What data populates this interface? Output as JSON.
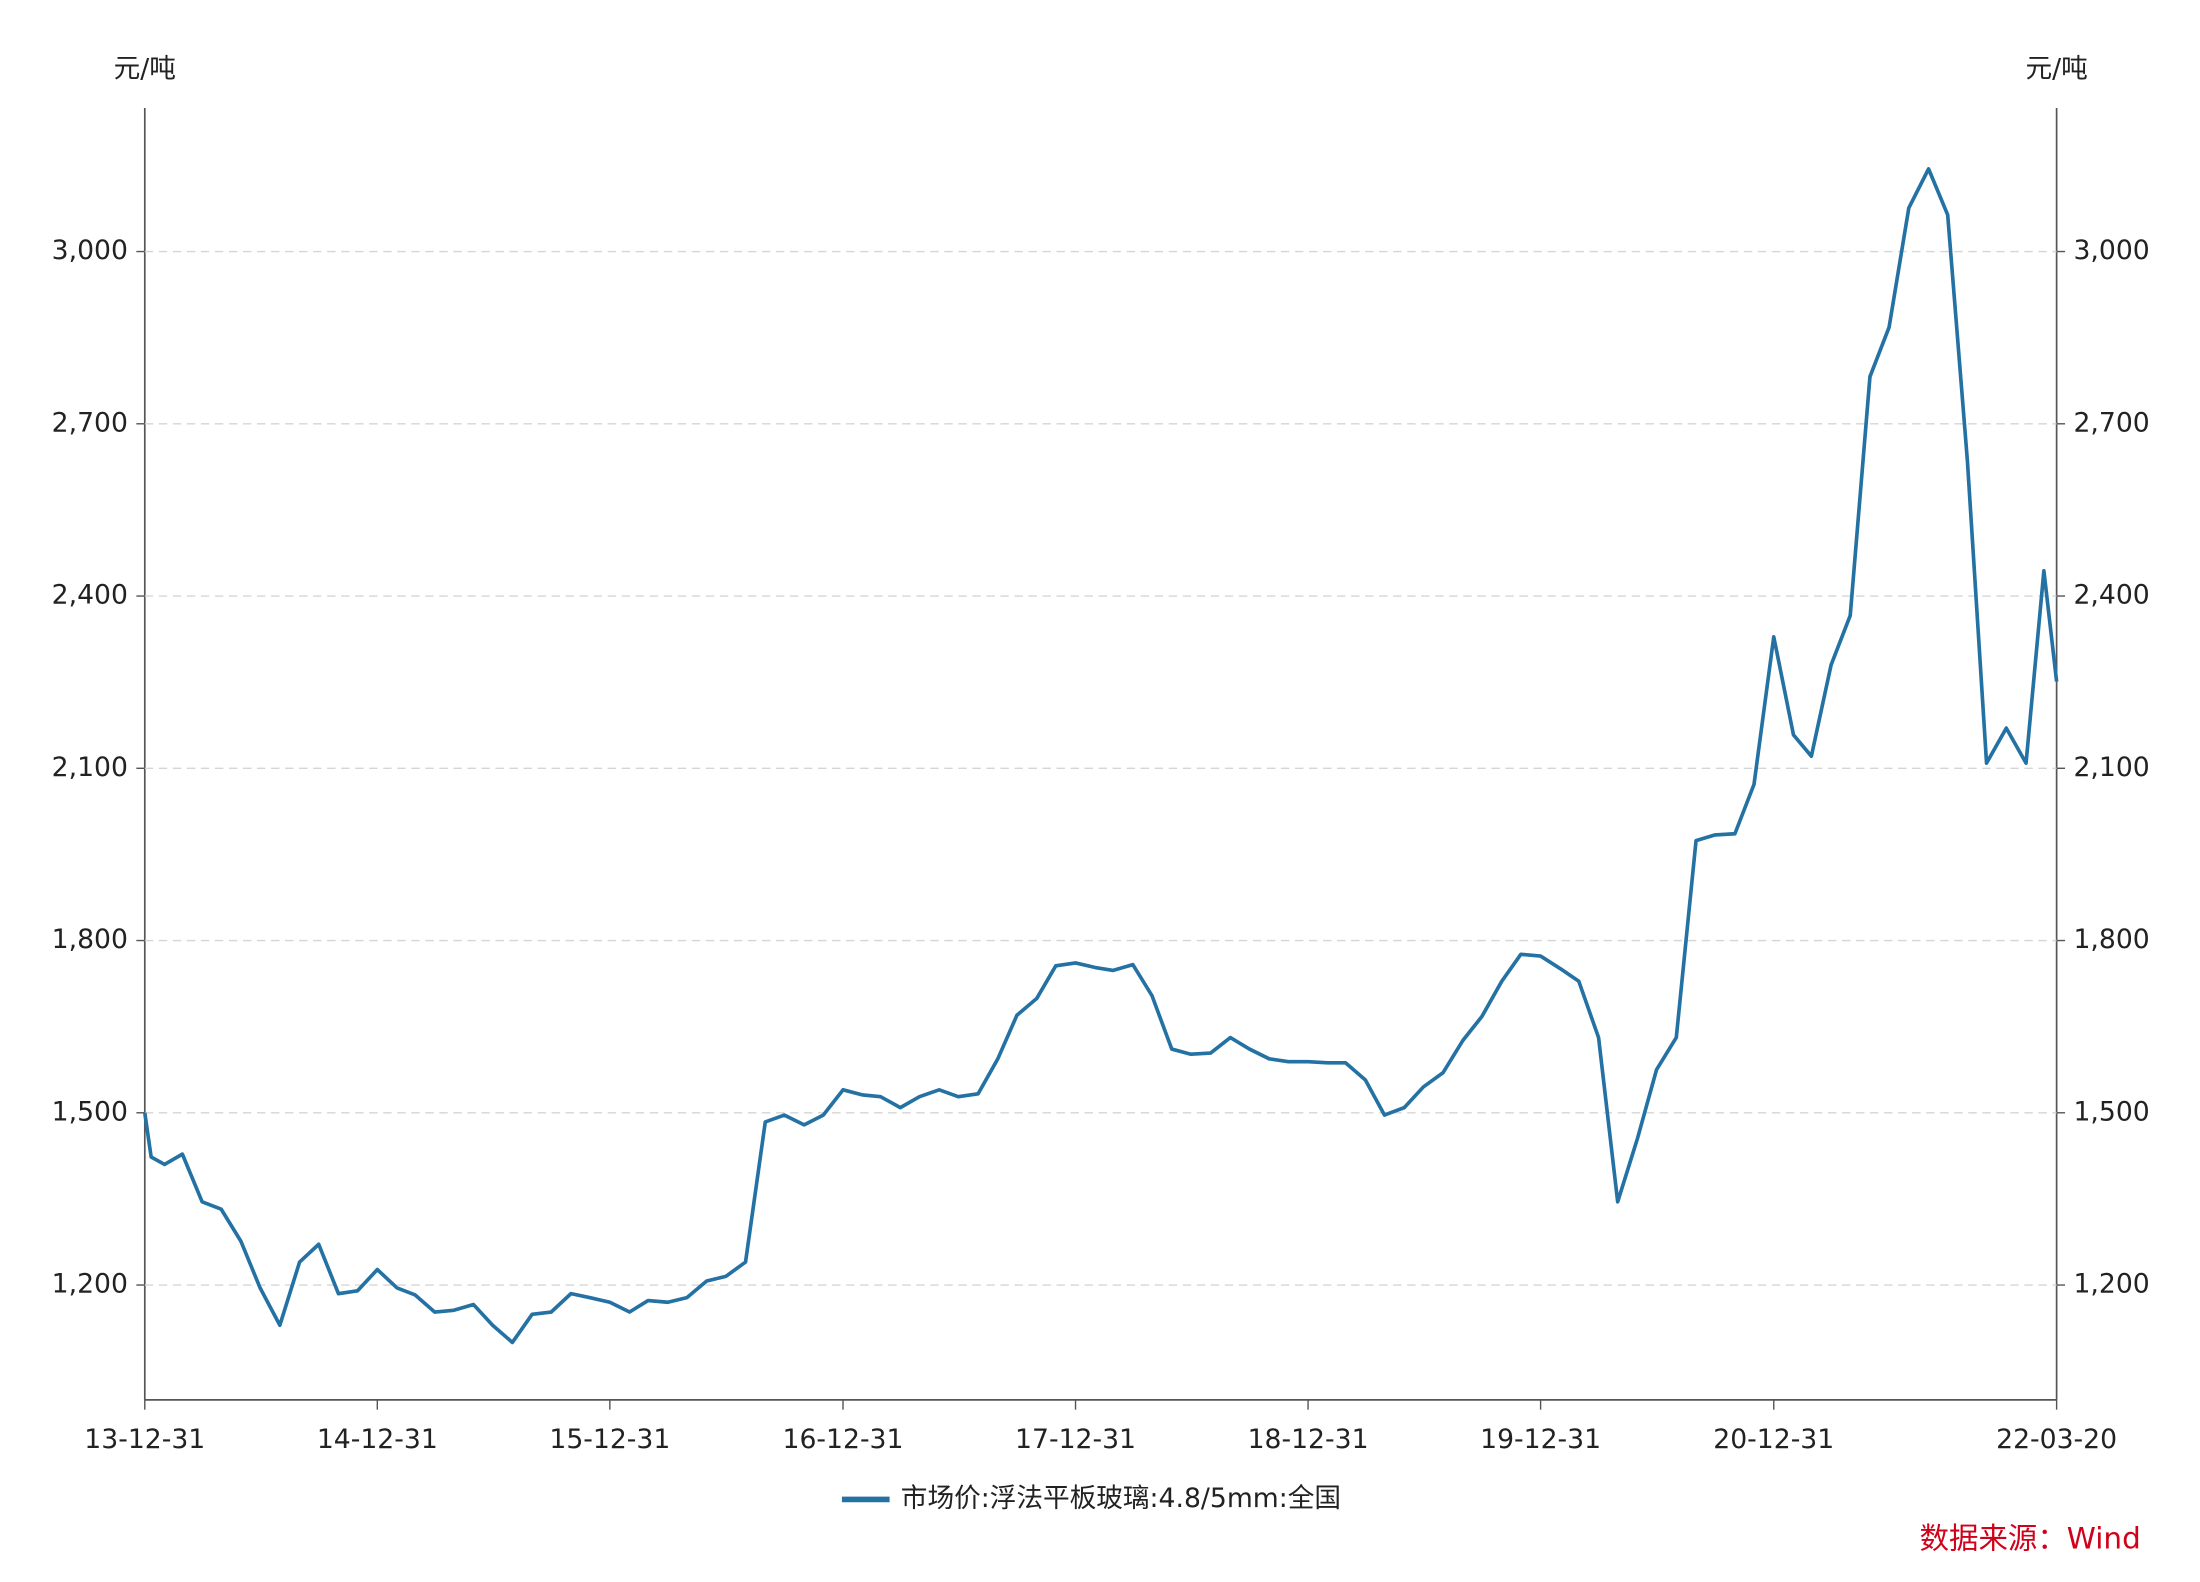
{
  "chart_data": {
    "type": "line",
    "y_unit_left": "元/吨",
    "y_unit_right": "元/吨",
    "x": [
      "13-12-31",
      "14-01-10",
      "14-01-31",
      "14-02-28",
      "14-03-31",
      "14-04-30",
      "14-05-31",
      "14-06-30",
      "14-07-31",
      "14-08-31",
      "14-09-30",
      "14-10-31",
      "14-11-30",
      "14-12-31",
      "15-01-31",
      "15-02-28",
      "15-03-31",
      "15-04-30",
      "15-05-31",
      "15-06-30",
      "15-07-31",
      "15-08-31",
      "15-09-30",
      "15-10-31",
      "15-11-30",
      "15-12-31",
      "16-01-31",
      "16-02-29",
      "16-03-31",
      "16-04-30",
      "16-05-31",
      "16-06-30",
      "16-07-31",
      "16-08-31",
      "16-09-30",
      "16-10-31",
      "16-11-30",
      "16-12-31",
      "17-01-31",
      "17-02-28",
      "17-03-31",
      "17-04-30",
      "17-05-31",
      "17-06-30",
      "17-07-31",
      "17-08-31",
      "17-09-30",
      "17-10-31",
      "17-11-30",
      "17-12-31",
      "18-01-31",
      "18-02-28",
      "18-03-31",
      "18-04-30",
      "18-05-31",
      "18-06-30",
      "18-07-31",
      "18-08-31",
      "18-09-30",
      "18-10-31",
      "18-11-30",
      "18-12-31",
      "19-01-31",
      "19-02-28",
      "19-03-31",
      "19-04-30",
      "19-05-31",
      "19-06-30",
      "19-07-31",
      "19-08-31",
      "19-09-30",
      "19-10-31",
      "19-11-30",
      "19-12-31",
      "20-01-31",
      "20-02-29",
      "20-03-31",
      "20-04-30",
      "20-05-31",
      "20-06-30",
      "20-07-31",
      "20-08-31",
      "20-09-30",
      "20-10-31",
      "20-11-30",
      "20-12-31",
      "21-01-31",
      "21-02-28",
      "21-03-31",
      "21-04-30",
      "21-05-31",
      "21-06-30",
      "21-07-31",
      "21-08-31",
      "21-09-30",
      "21-10-31",
      "21-11-30",
      "21-12-31",
      "22-01-31",
      "22-02-28",
      "22-03-20"
    ],
    "series": [
      {
        "name": "市场价:浮法平板玻璃:4.8/5mm:全国",
        "color": "#2471a3",
        "values": [
          1500,
          1423,
          1410,
          1428,
          1345,
          1332,
          1276,
          1195,
          1130,
          1240,
          1271,
          1185,
          1190,
          1227,
          1195,
          1183,
          1153,
          1156,
          1166,
          1130,
          1100,
          1149,
          1153,
          1185,
          1178,
          1170,
          1153,
          1173,
          1170,
          1178,
          1207,
          1215,
          1240,
          1484,
          1496,
          1479,
          1496,
          1540,
          1531,
          1528,
          1509,
          1528,
          1540,
          1528,
          1533,
          1594,
          1670,
          1699,
          1756,
          1761,
          1753,
          1748,
          1758,
          1704,
          1611,
          1602,
          1604,
          1631,
          1611,
          1594,
          1589,
          1589,
          1587,
          1587,
          1557,
          1496,
          1509,
          1545,
          1570,
          1626,
          1668,
          1729,
          1776,
          1773,
          1751,
          1729,
          1631,
          1345,
          1455,
          1575,
          1631,
          1974,
          1984,
          1986,
          2072,
          2329,
          2158,
          2121,
          2280,
          2366,
          2782,
          2868,
          3076,
          3144,
          3064,
          2635,
          2109,
          2170,
          2109,
          2444,
          2251
        ]
      }
    ],
    "xlim": [
      "13-12-31",
      "22-03-20"
    ],
    "xticks": [
      "13-12-31",
      "14-12-31",
      "15-12-31",
      "16-12-31",
      "17-12-31",
      "18-12-31",
      "19-12-31",
      "20-12-31",
      "22-03-20"
    ],
    "ylim": [
      1000,
      3250
    ],
    "yticks": [
      {
        "value": 1200,
        "label": "1,200"
      },
      {
        "value": 1500,
        "label": "1,500"
      },
      {
        "value": 1800,
        "label": "1,800"
      },
      {
        "value": 2100,
        "label": "2,100"
      },
      {
        "value": 2400,
        "label": "2,400"
      },
      {
        "value": 2700,
        "label": "2,700"
      },
      {
        "value": 3000,
        "label": "3,000"
      }
    ],
    "grid": true,
    "legend": "bottom",
    "source": "数据来源：Wind"
  }
}
